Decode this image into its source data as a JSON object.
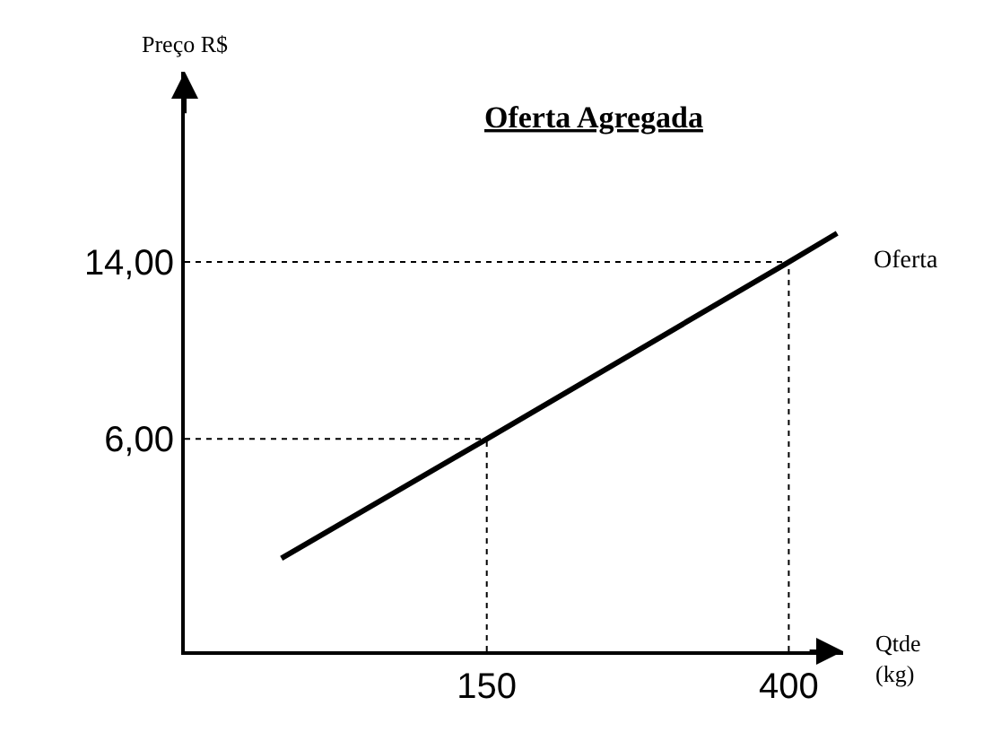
{
  "chart_data": {
    "type": "line",
    "title": "Oferta Agregada",
    "xlabel": "Qtde (kg)",
    "ylabel": "Preço R$",
    "series": [
      {
        "name": "Oferta",
        "color": "#000000",
        "x": [
          -20,
          150,
          400,
          440
        ],
        "values": [
          0.6,
          6,
          14,
          15.3
        ]
      }
    ],
    "xlim": [
      -100,
      445
    ],
    "ylim": [
      -3.6,
      22.6
    ],
    "xticks": [
      150,
      400
    ],
    "yticks": [
      {
        "value": 6,
        "label": "6,00"
      },
      {
        "value": 14,
        "label": "14,00"
      }
    ],
    "ref_lines": [
      {
        "axis": "x",
        "value": 150,
        "label": null,
        "line_style": "dotted",
        "color": "#000000"
      },
      {
        "axis": "x",
        "value": 400,
        "label": null,
        "line_style": "dotted",
        "color": "#000000"
      },
      {
        "axis": "y",
        "value": 6,
        "label": null,
        "line_style": "dotted",
        "color": "#000000"
      },
      {
        "axis": "y",
        "value": 14,
        "label": null,
        "line_style": "dotted",
        "color": "#000000"
      }
    ],
    "legend": false,
    "marker": "none",
    "line_style": "solid"
  }
}
